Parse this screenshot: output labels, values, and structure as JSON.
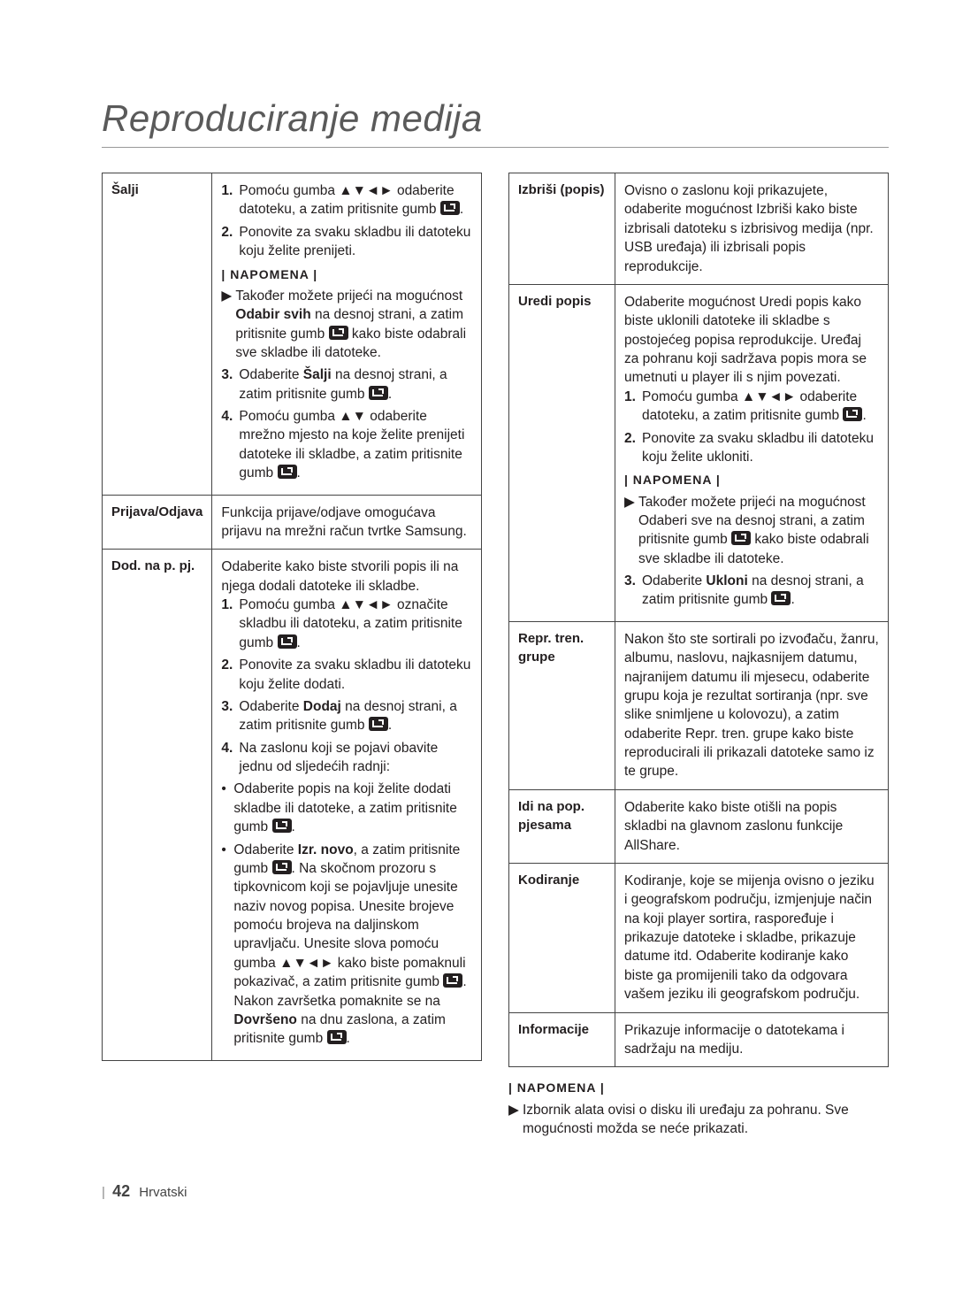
{
  "title": "Reproduciranje medija",
  "left": {
    "rows": [
      {
        "label": "Šalji",
        "body": [
          {
            "type": "num",
            "n": "1.",
            "t": "Pomoću gumba ▲▼◄► odaberite datoteku, a zatim pritisnite gumb",
            "enter": true,
            "suffix": "."
          },
          {
            "type": "num",
            "n": "2.",
            "t": "Ponovite za svaku skladbu ili datoteku koju želite prenijeti."
          },
          {
            "type": "notehdr",
            "t": "| NAPOMENA |"
          },
          {
            "type": "note",
            "b": "▶",
            "t": "Također možete prijeći na mogućnost <b>Odabir svih</b> na desnoj strani, a zatim pritisnite gumb",
            "enter": true,
            "suffix": " kako biste odabrali sve skladbe ili datoteke."
          },
          {
            "type": "num",
            "n": "3.",
            "t": "Odaberite <b>Šalji</b> na desnoj strani, a zatim pritisnite gumb",
            "enter": true,
            "suffix": "."
          },
          {
            "type": "num",
            "n": "4.",
            "t": "Pomoću gumba ▲▼ odaberite mrežno mjesto na koje želite prenijeti datoteke ili skladbe, a zatim pritisnite gumb",
            "enter": true,
            "suffix": "."
          }
        ]
      },
      {
        "label": "Prijava/Odjava",
        "body": [
          {
            "type": "plain",
            "t": "Funkcija prijave/odjave omogućava prijavu na mrežni račun tvrtke Samsung."
          }
        ]
      },
      {
        "label": "Dod. na p. pj.",
        "body": [
          {
            "type": "plain",
            "t": "Odaberite kako biste stvorili popis ili na njega dodali datoteke ili skladbe."
          },
          {
            "type": "num",
            "n": "1.",
            "t": "Pomoću gumba ▲▼◄► označite skladbu ili datoteku, a zatim pritisnite gumb",
            "enter": true,
            "suffix": "."
          },
          {
            "type": "num",
            "n": "2.",
            "t": "Ponovite za svaku skladbu ili datoteku koju želite dodati."
          },
          {
            "type": "num",
            "n": "3.",
            "t": "Odaberite <b>Dodaj</b> na desnoj strani, a zatim pritisnite gumb",
            "enter": true,
            "suffix": "."
          },
          {
            "type": "num",
            "n": "4.",
            "t": "Na zaslonu koji se pojavi obavite jednu od sljedećih radnji:"
          },
          {
            "type": "bull",
            "b": "•",
            "t": "Odaberite popis na koji želite dodati skladbe ili datoteke, a zatim pritisnite gumb",
            "enter": true,
            "suffix": "."
          },
          {
            "type": "bull",
            "b": "•",
            "t": "Odaberite <b>Izr. novo</b>, a zatim pritisnite gumb",
            "enter": true,
            "suffix": ". Na skočnom prozoru s tipkovnicom koji se pojavljuje unesite naziv novog popisa. Unesite brojeve pomoću brojeva na daljinskom upravljaču. Unesite slova pomoću gumba ▲▼◄► kako biste pomaknuli pokazivač, a zatim pritisnite gumb",
            "enter2": true,
            "suffix2": ". Nakon završetka pomaknite se na <b>Dovršeno</b> na dnu zaslona, a zatim pritisnite gumb",
            "enter3": true,
            "suffix3": "."
          }
        ]
      }
    ]
  },
  "right": {
    "rows": [
      {
        "label": "Izbriši (popis)",
        "body": [
          {
            "type": "plain",
            "t": "Ovisno o zaslonu koji prikazujete, odaberite mogućnost Izbriši kako biste izbrisali datoteku s izbrisivog medija (npr. USB uređaja) ili izbrisali popis reprodukcije."
          }
        ]
      },
      {
        "label": "Uredi popis",
        "body": [
          {
            "type": "plain",
            "t": "Odaberite mogućnost Uredi popis kako biste uklonili datoteke ili skladbe s postojećeg popisa reprodukcije. Uređaj za pohranu koji sadržava popis mora se umetnuti u player ili s njim povezati."
          },
          {
            "type": "num",
            "n": "1.",
            "t": "Pomoću gumba ▲▼◄► odaberite datoteku, a zatim pritisnite gumb",
            "enter": true,
            "suffix": "."
          },
          {
            "type": "num",
            "n": "2.",
            "t": "Ponovite za svaku skladbu ili datoteku koju želite ukloniti."
          },
          {
            "type": "notehdr",
            "t": "| NAPOMENA |"
          },
          {
            "type": "note",
            "b": "▶",
            "t": "Također možete prijeći na mogućnost Odaberi sve na desnoj strani, a zatim pritisnite gumb",
            "enter": true,
            "suffix": " kako biste odabrali sve skladbe ili datoteke."
          },
          {
            "type": "num",
            "n": "3.",
            "t": "Odaberite <b>Ukloni</b> na desnoj strani, a zatim pritisnite gumb",
            "enter": true,
            "suffix": "."
          }
        ]
      },
      {
        "label": "Repr. tren. grupe",
        "body": [
          {
            "type": "plain",
            "t": "Nakon što ste sortirali po izvođaču, žanru, albumu, naslovu, najkasnijem datumu, najranijem datumu ili mjesecu, odaberite grupu koja je rezultat sortiranja (npr. sve slike snimljene u kolovozu), a zatim odaberite Repr. tren. grupe kako biste reproducirali ili prikazali datoteke samo iz te grupe."
          }
        ]
      },
      {
        "label": "Idi na pop. pjesama",
        "body": [
          {
            "type": "plain",
            "t": "Odaberite kako biste otišli na popis skladbi na glavnom zaslonu funkcije AllShare."
          }
        ]
      },
      {
        "label": "Kodiranje",
        "body": [
          {
            "type": "plain",
            "t": "Kodiranje, koje se mijenja ovisno o jeziku i geografskom području, izmjenjuje način na koji player sortira, raspoređuje i prikazuje datoteke i skladbe, prikazuje datume itd. Odaberite kodiranje kako biste ga promijenili tako da odgovara vašem jeziku ili geografskom području."
          }
        ]
      },
      {
        "label": "Informacije",
        "body": [
          {
            "type": "plain",
            "t": "Prikazuje informacije o datotekama i sadržaju na mediju."
          }
        ]
      }
    ]
  },
  "bottomNote": {
    "hdr": "| NAPOMENA |",
    "b": "▶",
    "t": "Izbornik alata ovisi o disku ili uređaju za pohranu. Sve mogućnosti možda se neće prikazati."
  },
  "pageNumber": "42",
  "pageLang": "Hrvatski"
}
